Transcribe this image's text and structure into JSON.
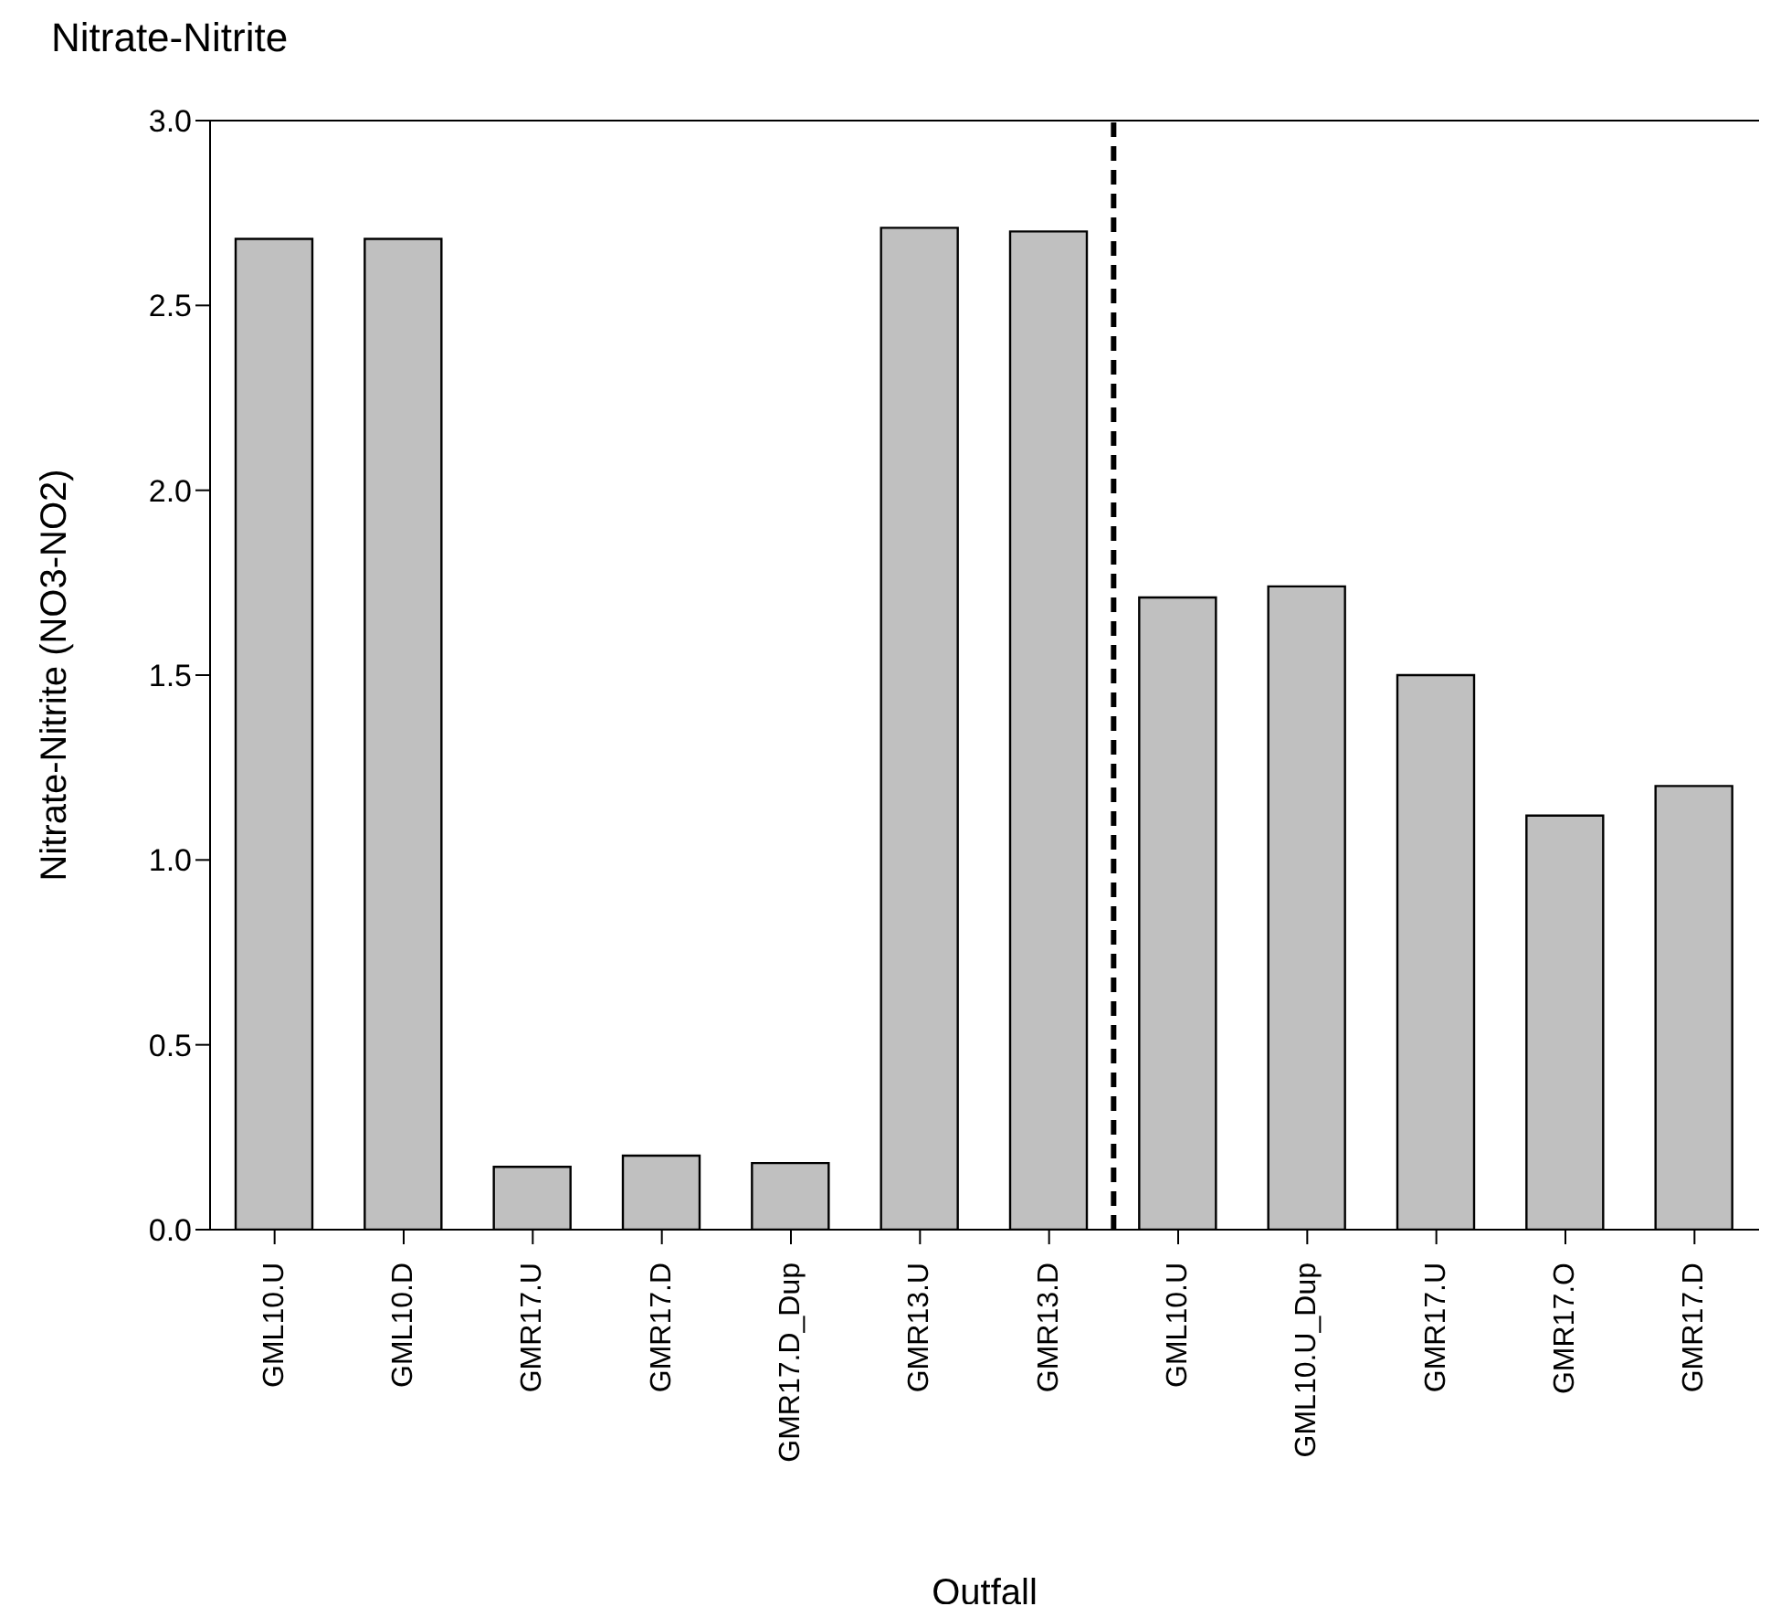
{
  "chart_data": {
    "type": "bar",
    "title": "Nitrate-Nitrite",
    "xlabel": "Outfall",
    "ylabel": "Nitrate-Nitrite (NO3-NO2)",
    "categories": [
      "GML10.U",
      "GML10.D",
      "GMR17.U",
      "GMR17.D",
      "GMR17.D_Dup",
      "GMR13.U",
      "GMR13.D",
      "GML10.U",
      "GML10.U_Dup",
      "GMR17.U",
      "GMR17.O",
      "GMR17.D"
    ],
    "values": [
      2.68,
      2.68,
      0.17,
      0.2,
      0.18,
      2.71,
      2.7,
      1.71,
      1.74,
      1.5,
      1.12,
      1.2
    ],
    "color": "#c0c0c0",
    "ylim": [
      0,
      3.0
    ],
    "yticks": [
      {
        "value": 0,
        "label": "0.0"
      },
      {
        "value": 0.5,
        "label": "0.5"
      },
      {
        "value": 1,
        "label": "1.0"
      },
      {
        "value": 1.5,
        "label": "1.5"
      },
      {
        "value": 2,
        "label": "2.0"
      },
      {
        "value": 2.5,
        "label": "2.5"
      },
      {
        "value": 3,
        "label": "3.0"
      }
    ],
    "grid": false,
    "legend": false
  }
}
